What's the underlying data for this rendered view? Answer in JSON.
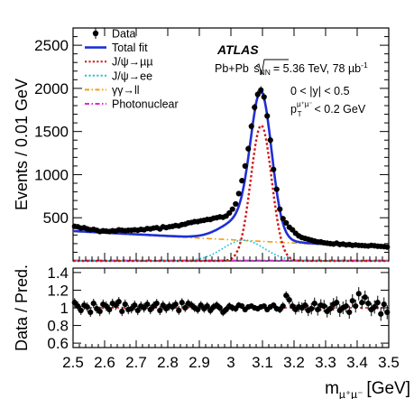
{
  "chart_data": {
    "type": "line",
    "experiment": "ATLAS",
    "annotations": {
      "collision": "Pb+Pb",
      "sqrt_s_label": "s",
      "sqrt_s_sub": "NN",
      "energy_lumi": "= 5.36 TeV, 78 µb",
      "lumi_exp": "-1",
      "y_cut": "0 < |y| < 0.5",
      "pt_cut_pre": "p",
      "pt_cut_sub": "T",
      "pt_cut_sup": "µ⁺µ⁻",
      "pt_cut_post": "< 0.2 GeV"
    },
    "xlabel": "m",
    "xlabel_sub": "µ⁺µ⁻",
    "xlabel_unit": "[GeV]",
    "ylabel_top": "Events / 0.01 GeV",
    "ylabel_bottom": "Data / Pred.",
    "xlim": [
      2.5,
      3.5
    ],
    "ylim_top": [
      0,
      2700
    ],
    "ylim_bottom": [
      0.55,
      1.45
    ],
    "x_ticks": [
      "2.5",
      "2.6",
      "2.7",
      "2.8",
      "2.9",
      "3",
      "3.1",
      "3.2",
      "3.3",
      "3.4",
      "3.5"
    ],
    "y_ticks_top": [
      "500",
      "1000",
      "1500",
      "2000",
      "2500"
    ],
    "y_ticks_bottom": [
      "0.6",
      "0.8",
      "1",
      "1.2",
      "1.4"
    ],
    "legend": {
      "placement": "top-left",
      "entries": [
        {
          "label": "Data",
          "style": "marker",
          "color": "#000000"
        },
        {
          "label": "Total fit",
          "style": "solid",
          "color": "#1f2fd6"
        },
        {
          "label": "J/ψ→µµ",
          "style": "dotted",
          "color": "#d01818"
        },
        {
          "label": "J/ψ→ee",
          "style": "dotted",
          "color": "#22c3d8"
        },
        {
          "label": "γγ→ll",
          "style": "dashdot",
          "color": "#f39c12"
        },
        {
          "label": "Photonuclear",
          "style": "dashdot",
          "color": "#d52bd5"
        }
      ]
    },
    "model": {
      "mumu_amplitude": 1570,
      "mumu_mean": 3.096,
      "mumu_sigma": 0.033,
      "ee_amplitude": 240,
      "ee_mean": 3.04,
      "ee_sigma": 0.065,
      "ll_at_xmin": 340,
      "ll_at_xmax": 150,
      "photonuclear_level": 6
    },
    "series": [
      {
        "name": "Data",
        "x": [
          2.505,
          2.515,
          2.525,
          2.535,
          2.545,
          2.555,
          2.565,
          2.575,
          2.585,
          2.595,
          2.605,
          2.615,
          2.625,
          2.635,
          2.645,
          2.655,
          2.665,
          2.675,
          2.685,
          2.695,
          2.705,
          2.715,
          2.725,
          2.735,
          2.745,
          2.755,
          2.765,
          2.775,
          2.785,
          2.795,
          2.805,
          2.815,
          2.825,
          2.835,
          2.845,
          2.855,
          2.865,
          2.875,
          2.885,
          2.895,
          2.905,
          2.915,
          2.925,
          2.935,
          2.945,
          2.955,
          2.965,
          2.975,
          2.985,
          2.995,
          3.005,
          3.015,
          3.025,
          3.035,
          3.045,
          3.055,
          3.065,
          3.075,
          3.085,
          3.095,
          3.105,
          3.115,
          3.125,
          3.135,
          3.145,
          3.155,
          3.165,
          3.175,
          3.185,
          3.195,
          3.205,
          3.215,
          3.225,
          3.235,
          3.245,
          3.255,
          3.265,
          3.275,
          3.285,
          3.295,
          3.305,
          3.315,
          3.325,
          3.335,
          3.345,
          3.355,
          3.365,
          3.375,
          3.385,
          3.395,
          3.405,
          3.415,
          3.425,
          3.435,
          3.445,
          3.455,
          3.465,
          3.475,
          3.485,
          3.495
        ],
        "y": [
          400,
          395,
          380,
          385,
          370,
          360,
          365,
          355,
          340,
          350,
          345,
          340,
          350,
          345,
          360,
          355,
          350,
          355,
          355,
          360,
          355,
          365,
          360,
          375,
          370,
          380,
          385,
          370,
          395,
          385,
          395,
          400,
          410,
          405,
          420,
          425,
          440,
          445,
          455,
          455,
          465,
          470,
          480,
          480,
          495,
          500,
          510,
          505,
          520,
          555,
          600,
          660,
          780,
          930,
          1100,
          1300,
          1560,
          1780,
          1930,
          1980,
          1900,
          1680,
          1400,
          1060,
          830,
          600,
          490,
          440,
          390,
          360,
          320,
          290,
          270,
          260,
          250,
          240,
          230,
          220,
          220,
          210,
          205,
          200,
          195,
          205,
          190,
          195,
          185,
          190,
          180,
          185,
          180,
          178,
          175,
          172,
          180,
          175,
          170,
          168,
          165,
          160
        ]
      },
      {
        "name": "Data / Pred.",
        "x": [
          2.505,
          2.515,
          2.525,
          2.535,
          2.545,
          2.555,
          2.565,
          2.575,
          2.585,
          2.595,
          2.605,
          2.615,
          2.625,
          2.635,
          2.645,
          2.655,
          2.665,
          2.675,
          2.685,
          2.695,
          2.705,
          2.715,
          2.725,
          2.735,
          2.745,
          2.755,
          2.765,
          2.775,
          2.785,
          2.795,
          2.805,
          2.815,
          2.825,
          2.835,
          2.845,
          2.855,
          2.865,
          2.875,
          2.885,
          2.895,
          2.905,
          2.915,
          2.925,
          2.935,
          2.945,
          2.955,
          2.965,
          2.975,
          2.985,
          2.995,
          3.005,
          3.015,
          3.025,
          3.035,
          3.045,
          3.055,
          3.065,
          3.075,
          3.085,
          3.095,
          3.105,
          3.115,
          3.125,
          3.135,
          3.145,
          3.155,
          3.165,
          3.175,
          3.185,
          3.195,
          3.205,
          3.215,
          3.225,
          3.235,
          3.245,
          3.255,
          3.265,
          3.275,
          3.285,
          3.295,
          3.305,
          3.315,
          3.325,
          3.335,
          3.345,
          3.355,
          3.365,
          3.375,
          3.385,
          3.395,
          3.405,
          3.415,
          3.425,
          3.435,
          3.445,
          3.455,
          3.465,
          3.475,
          3.485,
          3.495
        ],
        "y": [
          1.06,
          1.02,
          0.97,
          1.03,
          1.01,
          0.95,
          1.05,
          0.99,
          0.96,
          1.04,
          1.02,
          0.98,
          1.05,
          1.03,
          1.07,
          0.96,
          1.04,
          0.98,
          0.99,
          1.03,
          0.97,
          1.02,
          1.0,
          1.04,
          0.98,
          1.02,
          1.05,
          0.97,
          1.03,
          0.99,
          1.02,
          1.01,
          1.04,
          0.97,
          1.06,
          1.0,
          1.05,
          1.03,
          1.0,
          0.98,
          1.03,
          0.99,
          1.02,
          0.97,
          1.01,
          1.03,
          1.0,
          0.95,
          0.98,
          1.02,
          1.0,
          0.99,
          1.03,
          1.02,
          0.98,
          1.01,
          1.02,
          1.0,
          0.99,
          1.01,
          1.02,
          0.98,
          1.01,
          1.03,
          0.99,
          0.98,
          1.02,
          1.14,
          1.09,
          1.02,
          0.98,
          1.01,
          1.0,
          1.03,
          0.97,
          0.99,
          1.05,
          0.98,
          1.03,
          1.02,
          0.96,
          0.99,
          1.04,
          1.06,
          0.97,
          1.0,
          1.02,
          0.95,
          1.08,
          1.02,
          1.16,
          1.06,
          1.12,
          1.05,
          0.98,
          1.01,
          1.06,
          0.93,
          1.04,
          0.95
        ]
      }
    ]
  }
}
